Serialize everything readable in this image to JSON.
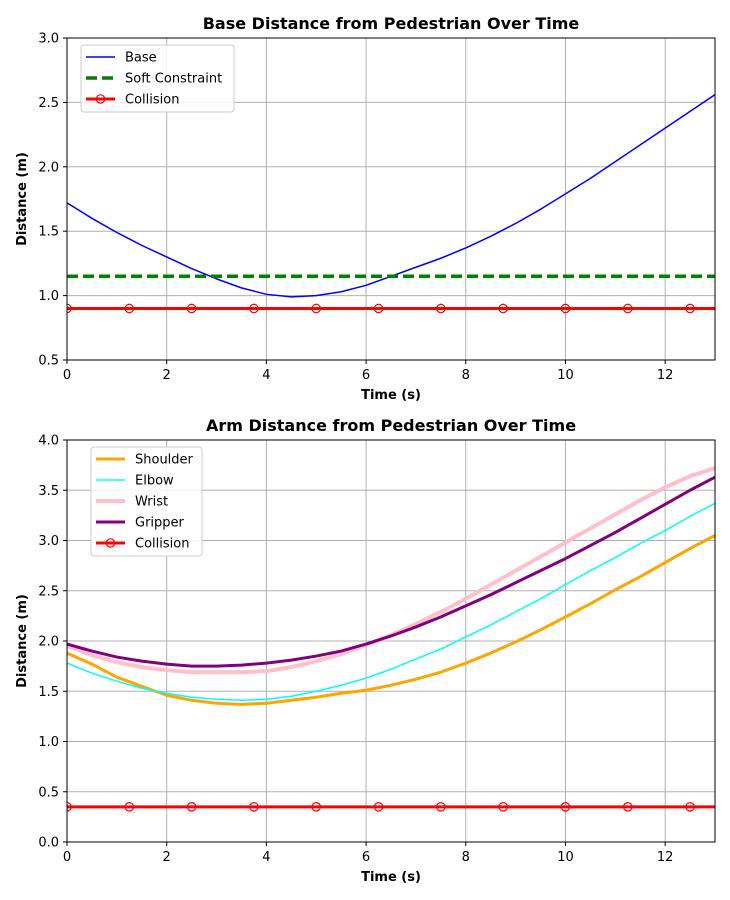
{
  "chart_data": [
    {
      "type": "line",
      "title": "Base Distance from Pedestrian Over Time",
      "xlabel": "Time (s)",
      "ylabel": "Distance (m)",
      "xlim": [
        0,
        13
      ],
      "ylim": [
        0.5,
        3.0
      ],
      "xticks": [
        0,
        2,
        4,
        6,
        8,
        10,
        12
      ],
      "yticks": [
        0.5,
        1.0,
        1.5,
        2.0,
        2.5,
        3.0
      ],
      "grid": true,
      "legend_position": "upper-left",
      "series": [
        {
          "name": "Base",
          "color": "#0000ff",
          "line_width": 1.5,
          "dash": "solid",
          "x": [
            0,
            0.5,
            1,
            1.5,
            2,
            2.5,
            3,
            3.5,
            4,
            4.5,
            5,
            5.5,
            6,
            6.5,
            7,
            7.5,
            8,
            8.5,
            9,
            9.5,
            10,
            10.5,
            11,
            11.5,
            12,
            12.5,
            13
          ],
          "y": [
            1.72,
            1.6,
            1.49,
            1.39,
            1.3,
            1.21,
            1.13,
            1.06,
            1.01,
            0.99,
            1.0,
            1.03,
            1.08,
            1.15,
            1.22,
            1.29,
            1.37,
            1.46,
            1.56,
            1.67,
            1.79,
            1.91,
            2.04,
            2.17,
            2.3,
            2.43,
            2.56
          ]
        },
        {
          "name": "Soft Constraint",
          "color": "#008000",
          "line_width": 3.5,
          "dash": "dashed",
          "x": [
            0,
            13
          ],
          "y": [
            1.15,
            1.15
          ]
        },
        {
          "name": "Collision",
          "color": "#ff0000",
          "line_width": 3,
          "dash": "solid",
          "marker": "open-circle",
          "x": [
            0,
            1.25,
            2.5,
            3.75,
            5,
            6.25,
            7.5,
            8.75,
            10,
            11.25,
            12.5,
            13
          ],
          "y": [
            0.9,
            0.9,
            0.9,
            0.9,
            0.9,
            0.9,
            0.9,
            0.9,
            0.9,
            0.9,
            0.9,
            0.9
          ],
          "marker_x": [
            0,
            1.25,
            2.5,
            3.75,
            5,
            6.25,
            7.5,
            8.75,
            10,
            11.25,
            12.5
          ]
        }
      ]
    },
    {
      "type": "line",
      "title": "Arm Distance from Pedestrian Over Time",
      "xlabel": "Time (s)",
      "ylabel": "Distance (m)",
      "xlim": [
        0,
        13
      ],
      "ylim": [
        0.0,
        4.0
      ],
      "xticks": [
        0,
        2,
        4,
        6,
        8,
        10,
        12
      ],
      "yticks": [
        0.0,
        0.5,
        1.0,
        1.5,
        2.0,
        2.5,
        3.0,
        3.5,
        4.0
      ],
      "grid": true,
      "legend_position": "upper-left",
      "series": [
        {
          "name": "Shoulder",
          "color": "#ffa500",
          "line_width": 3,
          "dash": "solid",
          "x": [
            0,
            0.5,
            1,
            1.5,
            2,
            2.5,
            3,
            3.5,
            4,
            4.5,
            5,
            5.5,
            6,
            6.5,
            7,
            7.5,
            8,
            8.5,
            9,
            9.5,
            10,
            10.5,
            11,
            11.5,
            12,
            12.5,
            13
          ],
          "y": [
            1.88,
            1.77,
            1.64,
            1.55,
            1.46,
            1.41,
            1.38,
            1.37,
            1.38,
            1.41,
            1.44,
            1.48,
            1.51,
            1.56,
            1.62,
            1.69,
            1.78,
            1.88,
            1.99,
            2.11,
            2.24,
            2.37,
            2.51,
            2.64,
            2.78,
            2.92,
            3.05
          ]
        },
        {
          "name": "Elbow",
          "color": "#00ffff",
          "line_width": 1.5,
          "dash": "solid",
          "x": [
            0,
            0.5,
            1,
            1.5,
            2,
            2.5,
            3,
            3.5,
            4,
            4.5,
            5,
            5.5,
            6,
            6.5,
            7,
            7.5,
            8,
            8.5,
            9,
            9.5,
            10,
            10.5,
            11,
            11.5,
            12,
            12.5,
            13
          ],
          "y": [
            1.78,
            1.68,
            1.6,
            1.53,
            1.48,
            1.44,
            1.42,
            1.41,
            1.42,
            1.45,
            1.5,
            1.56,
            1.63,
            1.72,
            1.82,
            1.92,
            2.04,
            2.16,
            2.29,
            2.42,
            2.56,
            2.7,
            2.83,
            2.97,
            3.1,
            3.24,
            3.37
          ]
        },
        {
          "name": "Wrist",
          "color": "#ffc0cb",
          "line_width": 4,
          "dash": "solid",
          "x": [
            0,
            0.5,
            1,
            1.5,
            2,
            2.5,
            3,
            3.5,
            4,
            4.5,
            5,
            5.5,
            6,
            6.5,
            7,
            7.5,
            8,
            8.5,
            9,
            9.5,
            10,
            10.5,
            11,
            11.5,
            12,
            12.5,
            13
          ],
          "y": [
            1.95,
            1.86,
            1.79,
            1.74,
            1.71,
            1.69,
            1.69,
            1.69,
            1.7,
            1.74,
            1.8,
            1.87,
            1.96,
            2.06,
            2.17,
            2.29,
            2.42,
            2.56,
            2.7,
            2.84,
            2.98,
            3.12,
            3.26,
            3.4,
            3.53,
            3.64,
            3.72
          ]
        },
        {
          "name": "Gripper",
          "color": "#800080",
          "line_width": 3,
          "dash": "solid",
          "x": [
            0,
            0.5,
            1,
            1.5,
            2,
            2.5,
            3,
            3.5,
            4,
            4.5,
            5,
            5.5,
            6,
            6.5,
            7,
            7.5,
            8,
            8.5,
            9,
            9.5,
            10,
            10.5,
            11,
            11.5,
            12,
            12.5,
            13
          ],
          "y": [
            1.97,
            1.9,
            1.84,
            1.8,
            1.77,
            1.75,
            1.75,
            1.76,
            1.78,
            1.81,
            1.85,
            1.9,
            1.97,
            2.05,
            2.14,
            2.24,
            2.35,
            2.46,
            2.58,
            2.7,
            2.82,
            2.95,
            3.08,
            3.22,
            3.36,
            3.5,
            3.63
          ]
        },
        {
          "name": "Collision",
          "color": "#ff0000",
          "line_width": 3,
          "dash": "solid",
          "marker": "open-circle",
          "x": [
            0,
            1.25,
            2.5,
            3.75,
            5,
            6.25,
            7.5,
            8.75,
            10,
            11.25,
            12.5,
            13
          ],
          "y": [
            0.35,
            0.35,
            0.35,
            0.35,
            0.35,
            0.35,
            0.35,
            0.35,
            0.35,
            0.35,
            0.35,
            0.35
          ],
          "marker_x": [
            0,
            1.25,
            2.5,
            3.75,
            5,
            6.25,
            7.5,
            8.75,
            10,
            11.25,
            12.5
          ]
        }
      ]
    }
  ]
}
